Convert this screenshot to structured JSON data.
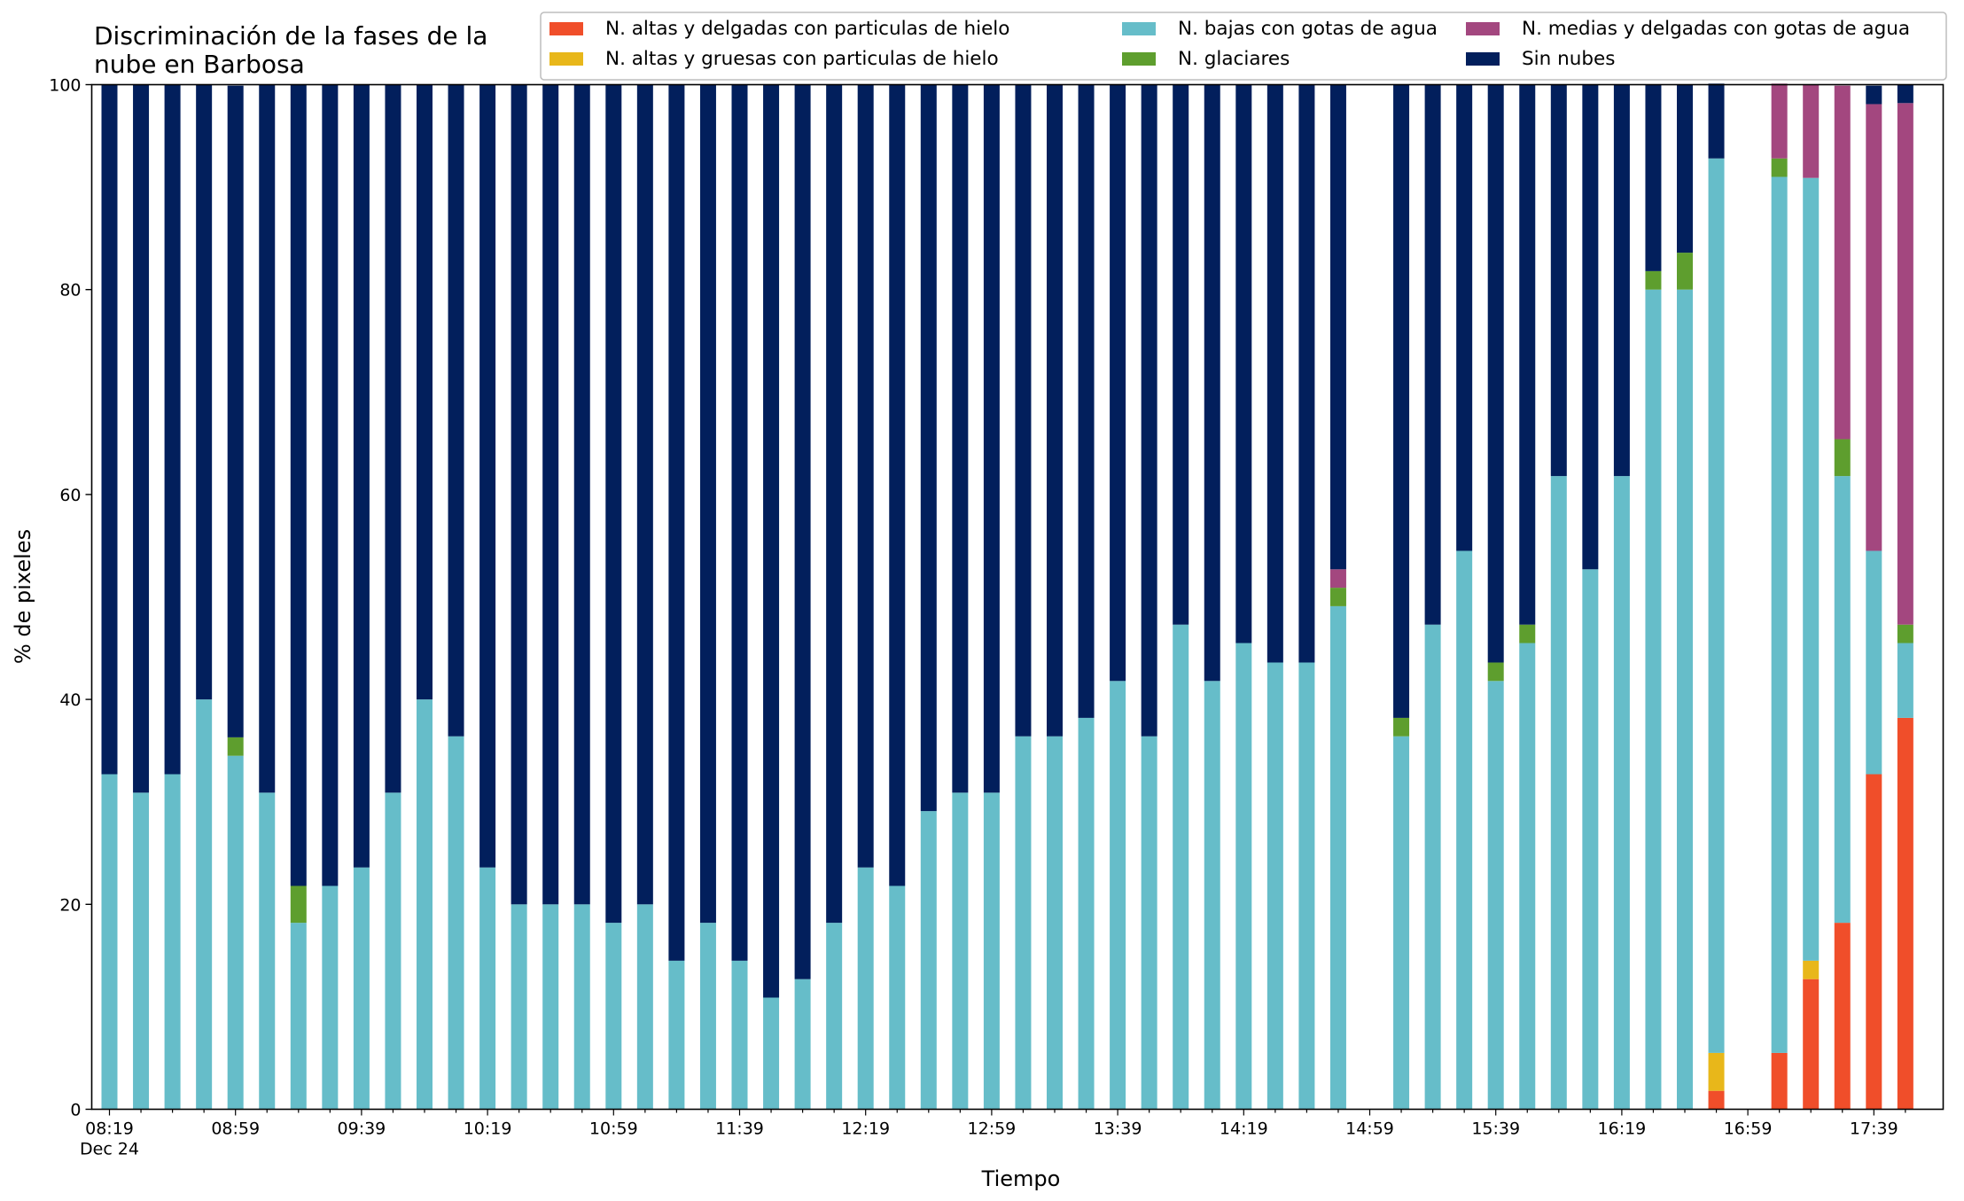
{
  "chart_data": {
    "type": "bar",
    "stacked": true,
    "title": [
      "Discriminación de la fases de la",
      "nube en Barbosa"
    ],
    "xlabel": "Tiempo",
    "ylabel": "% de pixeles",
    "ylim": [
      0,
      100
    ],
    "yticks": [
      0,
      20,
      40,
      60,
      80,
      100
    ],
    "xticks": [
      {
        "slot": 0,
        "label": "08:19",
        "sublabel": "Dec 24"
      },
      {
        "slot": 4,
        "label": "08:59"
      },
      {
        "slot": 8,
        "label": "09:39"
      },
      {
        "slot": 12,
        "label": "10:19"
      },
      {
        "slot": 16,
        "label": "10:59"
      },
      {
        "slot": 20,
        "label": "11:39"
      },
      {
        "slot": 24,
        "label": "12:19"
      },
      {
        "slot": 28,
        "label": "12:59"
      },
      {
        "slot": 32,
        "label": "13:39"
      },
      {
        "slot": 36,
        "label": "14:19"
      },
      {
        "slot": 40,
        "label": "14:59"
      },
      {
        "slot": 44,
        "label": "15:39"
      },
      {
        "slot": 48,
        "label": "16:19"
      },
      {
        "slot": 52,
        "label": "16:59"
      },
      {
        "slot": 56,
        "label": "17:39"
      }
    ],
    "x_interval_minutes": 10,
    "legend_placement": "top-right",
    "legend_columns": 3,
    "grid": false,
    "series": [
      {
        "name": "N. altas y delgadas con particulas de hielo",
        "color": "#f04e2a",
        "values": [
          0,
          0,
          0,
          0,
          0,
          0,
          0,
          0,
          0,
          0,
          0,
          0,
          0,
          0,
          0,
          0,
          0,
          0,
          0,
          0,
          0,
          0,
          0,
          0,
          0,
          0,
          0,
          0,
          0,
          0,
          0,
          0,
          0,
          0,
          0,
          0,
          0,
          0,
          0,
          0,
          null,
          0,
          0,
          0,
          0,
          0,
          0,
          0,
          0,
          0,
          0,
          1.8,
          null,
          5.5,
          12.7,
          18.2,
          32.7,
          38.2
        ]
      },
      {
        "name": "N. altas y gruesas con particulas de hielo",
        "color": "#e8b71a",
        "values": [
          0,
          0,
          0,
          0,
          0,
          0,
          0,
          0,
          0,
          0,
          0,
          0,
          0,
          0,
          0,
          0,
          0,
          0,
          0,
          0,
          0,
          0,
          0,
          0,
          0,
          0,
          0,
          0,
          0,
          0,
          0,
          0,
          0,
          0,
          0,
          0,
          0,
          0,
          0,
          0,
          null,
          0,
          0,
          0,
          0,
          0,
          0,
          0,
          0,
          0,
          0,
          3.7,
          null,
          0,
          1.8,
          0,
          0,
          0
        ]
      },
      {
        "name": "N. bajas con gotas de agua",
        "color": "#66bdc9",
        "values": [
          32.7,
          30.9,
          32.7,
          40.0,
          34.5,
          30.9,
          18.2,
          21.8,
          23.6,
          30.9,
          40.0,
          36.4,
          23.6,
          20.0,
          20.0,
          20.0,
          18.2,
          20.0,
          14.5,
          18.2,
          14.5,
          10.9,
          12.7,
          18.2,
          23.6,
          21.8,
          29.1,
          30.9,
          30.9,
          36.4,
          36.4,
          38.2,
          41.8,
          36.4,
          47.3,
          41.8,
          45.5,
          43.6,
          43.6,
          49.1,
          null,
          36.4,
          47.3,
          54.5,
          41.8,
          45.5,
          61.8,
          52.7,
          61.8,
          80.0,
          80.0,
          87.3,
          null,
          85.5,
          76.4,
          43.6,
          21.8,
          7.3
        ]
      },
      {
        "name": "N. glaciares",
        "color": "#5e9e2e",
        "values": [
          0,
          0,
          0,
          0,
          1.8,
          0,
          3.6,
          0,
          0,
          0,
          0,
          0,
          0,
          0,
          0,
          0,
          0,
          0,
          0,
          0,
          0,
          0,
          0,
          0,
          0,
          0,
          0,
          0,
          0,
          0,
          0,
          0,
          0,
          0,
          0,
          0,
          0,
          0,
          0,
          1.8,
          null,
          1.8,
          0,
          0,
          1.8,
          1.8,
          0,
          0,
          0,
          1.8,
          3.6,
          0,
          null,
          1.8,
          0,
          3.6,
          0,
          1.8
        ]
      },
      {
        "name": "N. medias y delgadas con gotas de agua",
        "color": "#a3477f",
        "values": [
          0,
          0,
          0,
          0,
          0,
          0,
          0,
          0,
          0,
          0,
          0,
          0,
          0,
          0,
          0,
          0,
          0,
          0,
          0,
          0,
          0,
          0,
          0,
          0,
          0,
          0,
          0,
          0,
          0,
          0,
          0,
          0,
          0,
          0,
          0,
          0,
          0,
          0,
          0,
          1.8,
          null,
          0,
          0,
          0,
          0,
          0,
          0,
          0,
          0,
          0,
          0,
          0,
          null,
          7.3,
          9.1,
          34.5,
          43.6,
          50.9
        ]
      },
      {
        "name": "Sin nubes",
        "color": "#021f5c",
        "values": [
          67.3,
          69.1,
          67.3,
          60.0,
          63.6,
          69.1,
          78.2,
          78.2,
          76.4,
          69.1,
          60.0,
          63.6,
          76.4,
          80.0,
          80.0,
          80.0,
          81.8,
          80.0,
          85.5,
          81.8,
          85.5,
          89.1,
          87.3,
          81.8,
          76.4,
          78.2,
          70.9,
          69.1,
          69.1,
          63.6,
          63.6,
          61.8,
          58.2,
          63.6,
          52.7,
          58.2,
          54.5,
          56.4,
          56.4,
          47.3,
          null,
          61.8,
          52.7,
          45.5,
          56.4,
          52.7,
          38.2,
          47.3,
          38.2,
          18.2,
          16.4,
          7.3,
          null,
          0,
          0,
          0,
          1.8,
          1.8
        ]
      }
    ]
  }
}
